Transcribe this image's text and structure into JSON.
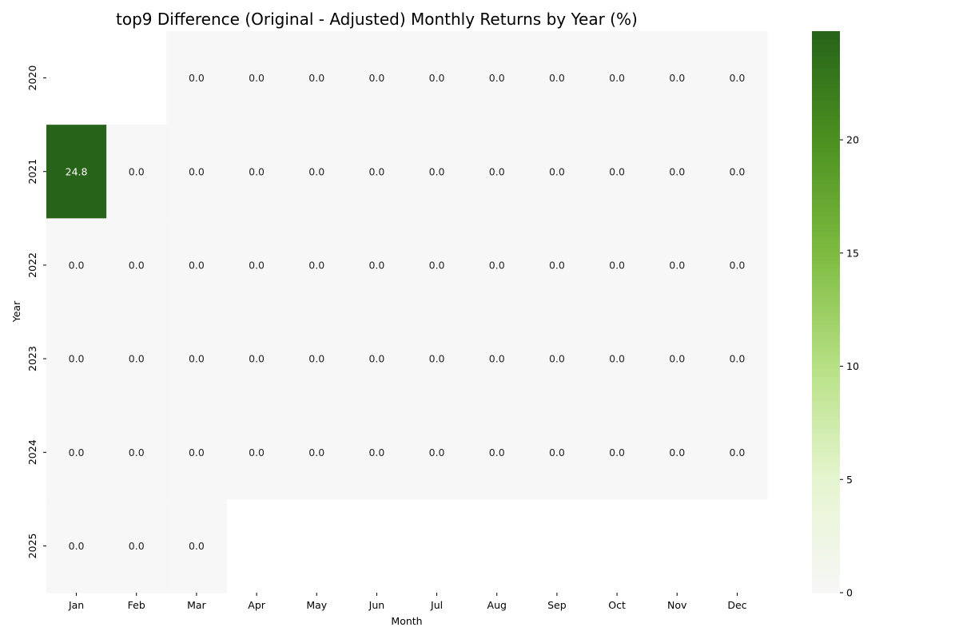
{
  "chart_data": {
    "type": "heatmap",
    "title": "top9 Difference (Original - Adjusted) Monthly Returns by Year (%)",
    "xlabel": "Month",
    "ylabel": "Year",
    "x_categories": [
      "Jan",
      "Feb",
      "Mar",
      "Apr",
      "May",
      "Jun",
      "Jul",
      "Aug",
      "Sep",
      "Oct",
      "Nov",
      "Dec"
    ],
    "y_categories": [
      "2020",
      "2021",
      "2022",
      "2023",
      "2024",
      "2025"
    ],
    "values": [
      [
        null,
        null,
        0.0,
        0.0,
        0.0,
        0.0,
        0.0,
        0.0,
        0.0,
        0.0,
        0.0,
        0.0
      ],
      [
        24.8,
        0.0,
        0.0,
        0.0,
        0.0,
        0.0,
        0.0,
        0.0,
        0.0,
        0.0,
        0.0,
        0.0
      ],
      [
        0.0,
        0.0,
        0.0,
        0.0,
        0.0,
        0.0,
        0.0,
        0.0,
        0.0,
        0.0,
        0.0,
        0.0
      ],
      [
        0.0,
        0.0,
        0.0,
        0.0,
        0.0,
        0.0,
        0.0,
        0.0,
        0.0,
        0.0,
        0.0,
        0.0
      ],
      [
        0.0,
        0.0,
        0.0,
        0.0,
        0.0,
        0.0,
        0.0,
        0.0,
        0.0,
        0.0,
        0.0,
        0.0
      ],
      [
        0.0,
        0.0,
        0.0,
        null,
        null,
        null,
        null,
        null,
        null,
        null,
        null,
        null
      ]
    ],
    "annotation_format": "0.0",
    "colorbar": {
      "range": [
        0,
        24.8
      ],
      "ticks": [
        0,
        5,
        10,
        15,
        20
      ],
      "colors": [
        "#f7f7f7",
        "#e6f5d0",
        "#b8e186",
        "#7fbc41",
        "#4d9221",
        "#276419"
      ]
    },
    "grid": false,
    "legend": "none"
  }
}
